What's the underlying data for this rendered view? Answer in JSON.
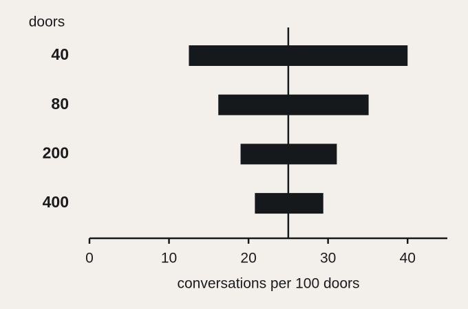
{
  "chart_data": {
    "type": "range",
    "y_label": "doors",
    "x_label": "conversations per 100 doors",
    "categories": [
      "40",
      "80",
      "200",
      "400"
    ],
    "low": [
      12.5,
      16.2,
      19.0,
      20.8
    ],
    "high": [
      40,
      35.1,
      31.1,
      29.4
    ],
    "color": "#16191c",
    "reference_line": 25,
    "xlim": [
      0,
      45
    ],
    "xticks": [
      0,
      10,
      20,
      30,
      40
    ]
  }
}
